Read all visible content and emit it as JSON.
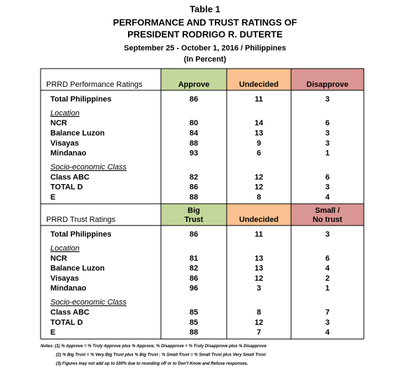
{
  "header": {
    "table_number": "Table 1",
    "title_lines": [
      "PERFORMANCE AND TRUST RATINGS OF",
      "PRESIDENT RODRIGO R. DUTERTE"
    ],
    "subtitle": "September 25 - October 1, 2016 / Philippines",
    "unit": "(In Percent)"
  },
  "sections": [
    {
      "label": "PRRD Performance Ratings",
      "columns": [
        [
          "Approve"
        ],
        [
          "Undecided"
        ],
        [
          "Disapprove"
        ]
      ],
      "total": {
        "label": "Total Philippines",
        "values": [
          86,
          11,
          3
        ]
      },
      "groups": [
        {
          "heading": "Location",
          "rows": [
            {
              "label": "NCR",
              "values": [
                80,
                14,
                6
              ]
            },
            {
              "label": "Balance Luzon",
              "values": [
                84,
                13,
                3
              ]
            },
            {
              "label": "Visayas",
              "values": [
                88,
                9,
                3
              ]
            },
            {
              "label": "Mindanao",
              "values": [
                93,
                6,
                1
              ]
            }
          ]
        },
        {
          "heading": "Socio-economic Class",
          "rows": [
            {
              "label": "Class ABC",
              "values": [
                82,
                12,
                6
              ]
            },
            {
              "label": "TOTAL D",
              "values": [
                86,
                12,
                3
              ]
            },
            {
              "label": "E",
              "values": [
                88,
                8,
                4
              ]
            }
          ]
        }
      ]
    },
    {
      "label": "PRRD Trust Ratings",
      "columns": [
        [
          "Big",
          "Trust"
        ],
        [
          "Undecided"
        ],
        [
          "Small /",
          "No trust"
        ]
      ],
      "total": {
        "label": "Total Philippines",
        "values": [
          86,
          11,
          3
        ]
      },
      "groups": [
        {
          "heading": "Location",
          "rows": [
            {
              "label": "NCR",
              "values": [
                81,
                13,
                6
              ]
            },
            {
              "label": "Balance Luzon",
              "values": [
                82,
                13,
                4
              ]
            },
            {
              "label": "Visayas",
              "values": [
                86,
                12,
                2
              ]
            },
            {
              "label": "Mindanao",
              "values": [
                96,
                3,
                1
              ]
            }
          ]
        },
        {
          "heading": "Socio-economic Class",
          "rows": [
            {
              "label": "Class ABC",
              "values": [
                85,
                8,
                7
              ]
            },
            {
              "label": "TOTAL D",
              "values": [
                85,
                12,
                3
              ]
            },
            {
              "label": "E",
              "values": [
                88,
                7,
                4
              ]
            }
          ]
        }
      ]
    }
  ],
  "notes": [
    "Notes: (1) % Approve = % Truly Approve plus % Approve; % Disapprove = % Truly Disapprove plus % Disapprove",
    "(2) % Big Trust = % Very Big Trust plus % Big Trust ; % Small Trust = % Small Trust plus Very Small Trust",
    "(3) Figures may not add up to 100% due to rounding off or to Don't Know and Refuse responses."
  ]
}
